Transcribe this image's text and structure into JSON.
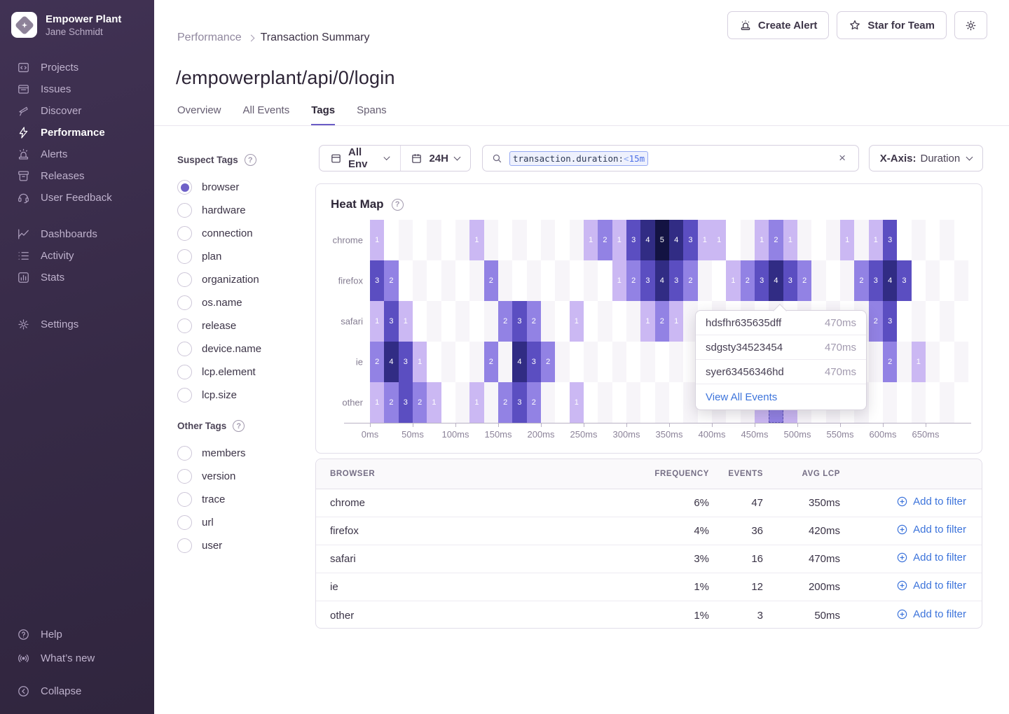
{
  "sidebar": {
    "org_name": "Empower Plant",
    "user_name": "Jane Schmidt",
    "groups": [
      {
        "items": [
          {
            "id": "projects",
            "label": "Projects"
          },
          {
            "id": "issues",
            "label": "Issues"
          },
          {
            "id": "discover",
            "label": "Discover"
          },
          {
            "id": "performance",
            "label": "Performance",
            "active": true
          },
          {
            "id": "alerts",
            "label": "Alerts"
          },
          {
            "id": "releases",
            "label": "Releases"
          },
          {
            "id": "user-feedback",
            "label": "User Feedback"
          }
        ]
      },
      {
        "items": [
          {
            "id": "dashboards",
            "label": "Dashboards"
          },
          {
            "id": "activity",
            "label": "Activity"
          },
          {
            "id": "stats",
            "label": "Stats"
          }
        ]
      },
      {
        "items": [
          {
            "id": "settings",
            "label": "Settings"
          }
        ]
      }
    ],
    "footer": [
      {
        "id": "help",
        "label": "Help"
      },
      {
        "id": "whats-new",
        "label": "What’s new"
      },
      {
        "id": "collapse",
        "label": "Collapse"
      }
    ]
  },
  "topbar": {
    "breadcrumb": [
      "Performance",
      "Transaction Summary"
    ],
    "create_alert": "Create Alert",
    "star_for_team": "Star for Team"
  },
  "page": {
    "title": "/empowerplant/api/0/login",
    "tabs": [
      "Overview",
      "All Events",
      "Tags",
      "Spans"
    ],
    "active_tab": "Tags"
  },
  "tags_panel": {
    "suspect_title": "Suspect Tags",
    "suspect": [
      {
        "label": "browser",
        "selected": true
      },
      {
        "label": "hardware"
      },
      {
        "label": "connection"
      },
      {
        "label": "plan"
      },
      {
        "label": "organization"
      },
      {
        "label": "os.name"
      },
      {
        "label": "release"
      },
      {
        "label": "device.name"
      },
      {
        "label": "lcp.element"
      },
      {
        "label": "lcp.size"
      }
    ],
    "other_title": "Other Tags",
    "other": [
      {
        "label": "members"
      },
      {
        "label": "version"
      },
      {
        "label": "trace"
      },
      {
        "label": "url"
      },
      {
        "label": "user"
      }
    ]
  },
  "filters": {
    "env_label": "All Env",
    "time_label": "24H",
    "search_token_key": "transaction.duration:",
    "search_token_op": "<",
    "search_token_value": "15m",
    "clear_icon": "×",
    "xaxis_label": "X-Axis:",
    "xaxis_value": "Duration"
  },
  "chart_data": {
    "type": "heatmap",
    "title": "Heat Map",
    "rows": [
      "chrome",
      "firefox",
      "safari",
      "ie",
      "other"
    ],
    "x_ticks": [
      "0ms",
      "50ms",
      "100ms",
      "150ms",
      "200ms",
      "250ms",
      "300ms",
      "350ms",
      "400ms",
      "450ms",
      "500ms",
      "550ms",
      "600ms",
      "650ms"
    ],
    "columns": 42,
    "cols_per_tick": 3,
    "value_colors": {
      "1": "#cbb8f3",
      "2": "#9282e4",
      "3": "#5b4ec1",
      "4": "#312c84",
      "5": "#131342"
    },
    "checker_color": "#f7f5f9",
    "cells": [
      [
        0,
        0,
        1
      ],
      [
        0,
        7,
        1
      ],
      [
        0,
        15,
        1
      ],
      [
        0,
        16,
        2
      ],
      [
        0,
        17,
        1
      ],
      [
        0,
        18,
        3
      ],
      [
        0,
        19,
        4
      ],
      [
        0,
        20,
        5
      ],
      [
        0,
        21,
        4
      ],
      [
        0,
        22,
        3
      ],
      [
        0,
        23,
        1
      ],
      [
        0,
        24,
        1
      ],
      [
        0,
        27,
        1
      ],
      [
        0,
        28,
        2
      ],
      [
        0,
        29,
        1
      ],
      [
        0,
        33,
        1
      ],
      [
        0,
        35,
        1
      ],
      [
        0,
        36,
        3
      ],
      [
        1,
        0,
        3
      ],
      [
        1,
        1,
        2
      ],
      [
        1,
        8,
        2
      ],
      [
        1,
        17,
        1
      ],
      [
        1,
        18,
        2
      ],
      [
        1,
        19,
        3
      ],
      [
        1,
        20,
        4
      ],
      [
        1,
        21,
        3
      ],
      [
        1,
        22,
        2
      ],
      [
        1,
        25,
        1
      ],
      [
        1,
        26,
        2
      ],
      [
        1,
        27,
        3
      ],
      [
        1,
        28,
        4
      ],
      [
        1,
        29,
        3
      ],
      [
        1,
        30,
        2
      ],
      [
        1,
        34,
        2
      ],
      [
        1,
        35,
        3
      ],
      [
        1,
        36,
        4
      ],
      [
        1,
        37,
        3
      ],
      [
        2,
        0,
        1
      ],
      [
        2,
        1,
        3
      ],
      [
        2,
        2,
        1
      ],
      [
        2,
        9,
        2
      ],
      [
        2,
        10,
        3
      ],
      [
        2,
        11,
        2
      ],
      [
        2,
        14,
        1
      ],
      [
        2,
        19,
        1
      ],
      [
        2,
        20,
        2
      ],
      [
        2,
        21,
        1
      ],
      [
        2,
        35,
        2
      ],
      [
        2,
        36,
        3
      ],
      [
        3,
        0,
        2
      ],
      [
        3,
        1,
        4
      ],
      [
        3,
        2,
        3
      ],
      [
        3,
        3,
        1
      ],
      [
        3,
        8,
        2
      ],
      [
        3,
        10,
        4
      ],
      [
        3,
        11,
        3
      ],
      [
        3,
        12,
        2
      ],
      [
        3,
        36,
        2
      ],
      [
        3,
        38,
        1
      ],
      [
        4,
        0,
        1
      ],
      [
        4,
        1,
        2
      ],
      [
        4,
        2,
        3
      ],
      [
        4,
        3,
        2
      ],
      [
        4,
        4,
        1
      ],
      [
        4,
        7,
        1
      ],
      [
        4,
        9,
        2
      ],
      [
        4,
        10,
        3
      ],
      [
        4,
        11,
        2
      ],
      [
        4,
        14,
        1
      ],
      [
        4,
        27,
        1
      ],
      [
        4,
        28,
        2
      ],
      [
        4,
        29,
        1
      ]
    ],
    "hover_cell": {
      "row": 4,
      "col": 28
    }
  },
  "tooltip": {
    "events": [
      {
        "id": "hdsfhr635635dff",
        "value": "470ms"
      },
      {
        "id": "sdgsty34523454",
        "value": "470ms"
      },
      {
        "id": "syer63456346hd",
        "value": "470ms"
      }
    ],
    "link": "View All Events"
  },
  "table": {
    "headers": [
      "BROWSER",
      "FREQUENCY",
      "EVENTS",
      "AVG LCP"
    ],
    "action_label": "Add to filter",
    "rows": [
      {
        "browser": "chrome",
        "frequency": "6%",
        "events": "47",
        "avg_lcp": "350ms"
      },
      {
        "browser": "firefox",
        "frequency": "4%",
        "events": "36",
        "avg_lcp": "420ms"
      },
      {
        "browser": "safari",
        "frequency": "3%",
        "events": "16",
        "avg_lcp": "470ms"
      },
      {
        "browser": "ie",
        "frequency": "1%",
        "events": "12",
        "avg_lcp": "200ms"
      },
      {
        "browser": "other",
        "frequency": "1%",
        "events": "3",
        "avg_lcp": "50ms"
      }
    ]
  }
}
